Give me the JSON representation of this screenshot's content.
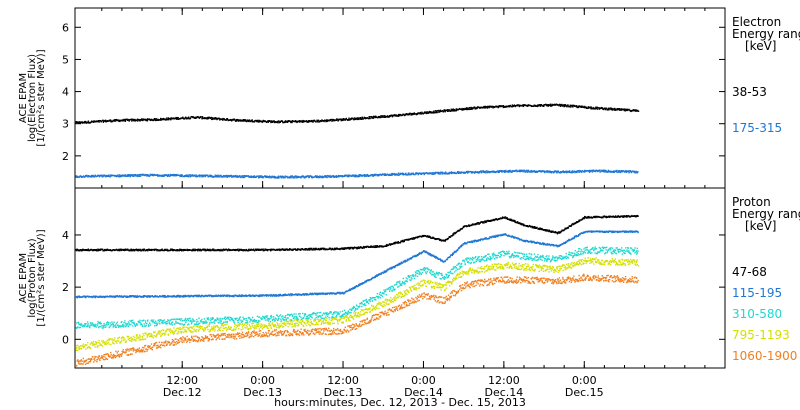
{
  "chart_data": [
    {
      "type": "scatter",
      "panel": "electron",
      "ylabel_lines": [
        "ACE EPAM",
        "log(Electron Flux)",
        "[1/(cm²s ster MeV)]"
      ],
      "legend_title_lines": [
        "Electron",
        "Energy ranges",
        "[keV]"
      ],
      "x_range": [
        "2013-12-11 20:00",
        "2013-12-15 21:00"
      ],
      "ylim": [
        1.0,
        6.6
      ],
      "yticks": [
        "2",
        "3",
        "4",
        "5",
        "6"
      ],
      "ytick_values": [
        2,
        3,
        4,
        5,
        6
      ],
      "series": [
        {
          "name": "38-53",
          "color": "#000000",
          "x": [
            "2013-12-11 20:00",
            "2013-12-12 02:00",
            "2013-12-12 08:00",
            "2013-12-12 14:00",
            "2013-12-12 20:00",
            "2013-12-13 02:00",
            "2013-12-13 08:00",
            "2013-12-13 14:00",
            "2013-12-13 20:00",
            "2013-12-14 02:00",
            "2013-12-14 08:00",
            "2013-12-14 14:00",
            "2013-12-14 20:00",
            "2013-12-15 02:00",
            "2013-12-15 08:00"
          ],
          "y": [
            3.05,
            3.12,
            3.15,
            3.22,
            3.13,
            3.08,
            3.1,
            3.18,
            3.28,
            3.4,
            3.52,
            3.58,
            3.6,
            3.5,
            3.42
          ]
        },
        {
          "name": "175-315",
          "color": "#1f77d4",
          "x": [
            "2013-12-11 20:00",
            "2013-12-12 02:00",
            "2013-12-12 08:00",
            "2013-12-12 14:00",
            "2013-12-12 20:00",
            "2013-12-13 02:00",
            "2013-12-13 08:00",
            "2013-12-13 14:00",
            "2013-12-13 20:00",
            "2013-12-14 02:00",
            "2013-12-14 08:00",
            "2013-12-14 14:00",
            "2013-12-14 20:00",
            "2013-12-15 02:00",
            "2013-12-15 08:00"
          ],
          "y": [
            1.38,
            1.4,
            1.42,
            1.4,
            1.38,
            1.36,
            1.37,
            1.4,
            1.45,
            1.48,
            1.52,
            1.55,
            1.52,
            1.55,
            1.52
          ]
        }
      ]
    },
    {
      "type": "scatter",
      "panel": "proton",
      "ylabel_lines": [
        "ACE EPAM",
        "log(Proton Flux)",
        "[1/(cm²s ster MeV)]"
      ],
      "legend_title_lines": [
        "Proton",
        "Energy ranges",
        "[keV]"
      ],
      "x_range": [
        "2013-12-11 20:00",
        "2013-12-15 21:00"
      ],
      "ylim": [
        -1.1,
        5.8
      ],
      "yticks": [
        "0",
        "2",
        "4"
      ],
      "ytick_values": [
        0,
        2,
        4
      ],
      "series": [
        {
          "name": "47-68",
          "color": "#000000",
          "x": [
            "2013-12-11 20:00",
            "2013-12-12 12:00",
            "2013-12-13 00:00",
            "2013-12-13 12:00",
            "2013-12-13 18:00",
            "2013-12-14 00:00",
            "2013-12-14 03:00",
            "2013-12-14 06:00",
            "2013-12-14 12:00",
            "2013-12-14 15:00",
            "2013-12-14 20:00",
            "2013-12-15 00:00",
            "2013-12-15 08:00"
          ],
          "y": [
            3.45,
            3.45,
            3.45,
            3.5,
            3.6,
            4.0,
            3.8,
            4.35,
            4.7,
            4.4,
            4.1,
            4.7,
            4.75
          ]
        },
        {
          "name": "115-195",
          "color": "#1f77d4",
          "x": [
            "2013-12-11 20:00",
            "2013-12-12 12:00",
            "2013-12-13 00:00",
            "2013-12-13 12:00",
            "2013-12-13 18:00",
            "2013-12-14 00:00",
            "2013-12-14 03:00",
            "2013-12-14 06:00",
            "2013-12-14 12:00",
            "2013-12-14 15:00",
            "2013-12-14 20:00",
            "2013-12-15 00:00",
            "2013-12-15 08:00"
          ],
          "y": [
            1.65,
            1.68,
            1.7,
            1.8,
            2.6,
            3.4,
            3.0,
            3.7,
            4.05,
            3.8,
            3.6,
            4.15,
            4.15
          ]
        },
        {
          "name": "310-580",
          "color": "#20d8d0",
          "x": [
            "2013-12-11 20:00",
            "2013-12-12 12:00",
            "2013-12-13 00:00",
            "2013-12-13 12:00",
            "2013-12-13 18:00",
            "2013-12-14 00:00",
            "2013-12-14 03:00",
            "2013-12-14 06:00",
            "2013-12-14 12:00",
            "2013-12-14 15:00",
            "2013-12-14 20:00",
            "2013-12-15 00:00",
            "2013-12-15 08:00"
          ],
          "y": [
            0.55,
            0.7,
            0.8,
            1.0,
            1.8,
            2.7,
            2.4,
            3.0,
            3.3,
            3.2,
            3.1,
            3.45,
            3.4
          ]
        },
        {
          "name": "795-1193",
          "color": "#d4e000",
          "x": [
            "2013-12-11 20:00",
            "2013-12-12 12:00",
            "2013-12-13 00:00",
            "2013-12-13 12:00",
            "2013-12-13 18:00",
            "2013-12-14 00:00",
            "2013-12-14 03:00",
            "2013-12-14 06:00",
            "2013-12-14 12:00",
            "2013-12-14 15:00",
            "2013-12-14 20:00",
            "2013-12-15 00:00",
            "2013-12-15 08:00"
          ],
          "y": [
            -0.3,
            0.4,
            0.55,
            0.75,
            1.4,
            2.2,
            2.0,
            2.6,
            2.85,
            2.8,
            2.7,
            3.05,
            2.95
          ]
        },
        {
          "name": "1060-1900",
          "color": "#f08020",
          "x": [
            "2013-12-11 20:00",
            "2013-12-12 12:00",
            "2013-12-13 00:00",
            "2013-12-13 12:00",
            "2013-12-13 18:00",
            "2013-12-14 00:00",
            "2013-12-14 03:00",
            "2013-12-14 06:00",
            "2013-12-14 12:00",
            "2013-12-14 15:00",
            "2013-12-14 20:00",
            "2013-12-15 00:00",
            "2013-12-15 08:00"
          ],
          "y": [
            -0.9,
            0.0,
            0.25,
            0.35,
            1.0,
            1.7,
            1.5,
            2.1,
            2.3,
            2.3,
            2.25,
            2.4,
            2.3
          ]
        }
      ]
    }
  ],
  "x_axis": {
    "ticks": [
      {
        "time": "2013-12-12 12:00",
        "line1": "12:00",
        "line2": "Dec.12"
      },
      {
        "time": "2013-12-13 00:00",
        "line1": "0:00",
        "line2": "Dec.13"
      },
      {
        "time": "2013-12-13 12:00",
        "line1": "12:00",
        "line2": "Dec.13"
      },
      {
        "time": "2013-12-14 00:00",
        "line1": "0:00",
        "line2": "Dec.14"
      },
      {
        "time": "2013-12-14 12:00",
        "line1": "12:00",
        "line2": "Dec.14"
      },
      {
        "time": "2013-12-15 00:00",
        "line1": "0:00",
        "line2": "Dec.15"
      }
    ],
    "xlabel": "hours:minutes, Dec. 12, 2013 - Dec. 15, 2013"
  }
}
